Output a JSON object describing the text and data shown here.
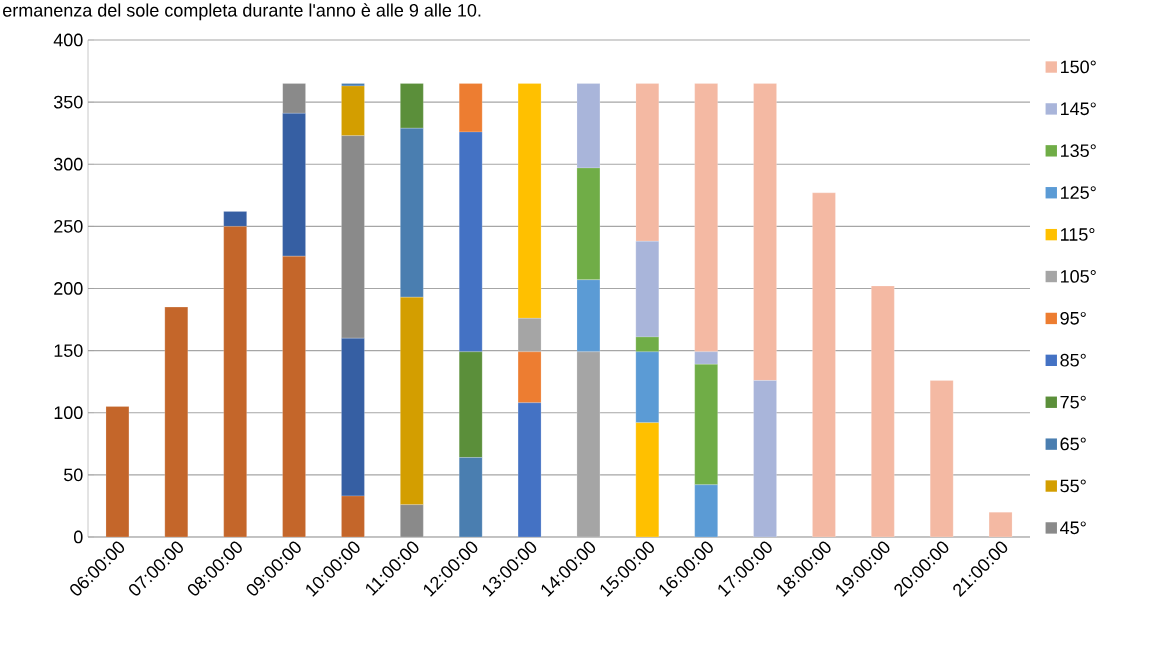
{
  "chart_data": {
    "type": "bar",
    "stacked": true,
    "title": "ermanenza del sole completa durante l'anno è alle 9 alle 10.",
    "categories": [
      "06:00:00",
      "07:00:00",
      "08:00:00",
      "09:00:00",
      "10:00:00",
      "11:00:00",
      "12:00:00",
      "13:00:00",
      "14:00:00",
      "15:00:00",
      "16:00:00",
      "17:00:00",
      "18:00:00",
      "19:00:00",
      "20:00:00",
      "21:00:00"
    ],
    "series": [
      {
        "color": "#c4662a",
        "values": [
          105,
          185,
          250,
          226,
          33,
          null,
          null,
          null,
          null,
          null,
          null,
          null,
          null,
          null,
          null,
          null
        ]
      },
      {
        "color": "#365fa3",
        "values": [
          null,
          null,
          12,
          115,
          127,
          null,
          null,
          null,
          null,
          null,
          null,
          null,
          null,
          null,
          null,
          null
        ]
      },
      {
        "name": "45°",
        "color": "#8a8a8a",
        "values": [
          null,
          null,
          null,
          24,
          163,
          26,
          null,
          null,
          null,
          null,
          null,
          null,
          null,
          null,
          null,
          null
        ]
      },
      {
        "name": "55°",
        "color": "#d39e00",
        "values": [
          null,
          null,
          null,
          null,
          40,
          167,
          null,
          null,
          null,
          null,
          null,
          null,
          null,
          null,
          null,
          null
        ]
      },
      {
        "name": "65°",
        "color": "#4a7eb0",
        "values": [
          null,
          null,
          null,
          null,
          2,
          136,
          64,
          null,
          null,
          null,
          null,
          null,
          null,
          null,
          null,
          null
        ]
      },
      {
        "name": "75°",
        "color": "#5b8f3a",
        "values": [
          null,
          null,
          null,
          null,
          null,
          36,
          85,
          null,
          null,
          null,
          null,
          null,
          null,
          null,
          null,
          null
        ]
      },
      {
        "name": "85°",
        "color": "#4472c4",
        "values": [
          null,
          null,
          null,
          null,
          null,
          null,
          177,
          108,
          null,
          null,
          null,
          null,
          null,
          null,
          null,
          null
        ]
      },
      {
        "name": "95°",
        "color": "#ed7d31",
        "values": [
          null,
          null,
          null,
          null,
          null,
          null,
          39,
          41,
          null,
          null,
          null,
          null,
          null,
          null,
          null,
          null
        ]
      },
      {
        "name": "105°",
        "color": "#a5a5a5",
        "values": [
          null,
          null,
          null,
          null,
          null,
          null,
          null,
          27,
          149,
          null,
          null,
          null,
          null,
          null,
          null,
          null
        ]
      },
      {
        "name": "115°",
        "color": "#ffc000",
        "values": [
          null,
          null,
          null,
          null,
          null,
          null,
          null,
          189,
          null,
          92,
          null,
          null,
          null,
          null,
          null,
          null
        ]
      },
      {
        "name": "125°",
        "color": "#5b9bd5",
        "values": [
          null,
          null,
          null,
          null,
          null,
          null,
          null,
          null,
          58,
          57,
          42,
          null,
          null,
          null,
          null,
          null
        ]
      },
      {
        "name": "135°",
        "color": "#70ad47",
        "values": [
          null,
          null,
          null,
          null,
          null,
          null,
          null,
          null,
          90,
          12,
          97,
          null,
          null,
          null,
          null,
          null
        ]
      },
      {
        "name": "145°",
        "color": "#a9b5da",
        "values": [
          null,
          null,
          null,
          null,
          null,
          null,
          null,
          null,
          68,
          77,
          10,
          126,
          null,
          null,
          null,
          null
        ]
      },
      {
        "name": "150°",
        "color": "#f4b9a3",
        "values": [
          null,
          null,
          null,
          null,
          null,
          null,
          null,
          null,
          null,
          127,
          216,
          239,
          277,
          202,
          126,
          20
        ]
      }
    ],
    "ylim": [
      0,
      400
    ],
    "yticks": [
      0,
      50,
      100,
      150,
      200,
      250,
      300,
      350,
      400
    ],
    "grid": "y",
    "legend": "right"
  }
}
